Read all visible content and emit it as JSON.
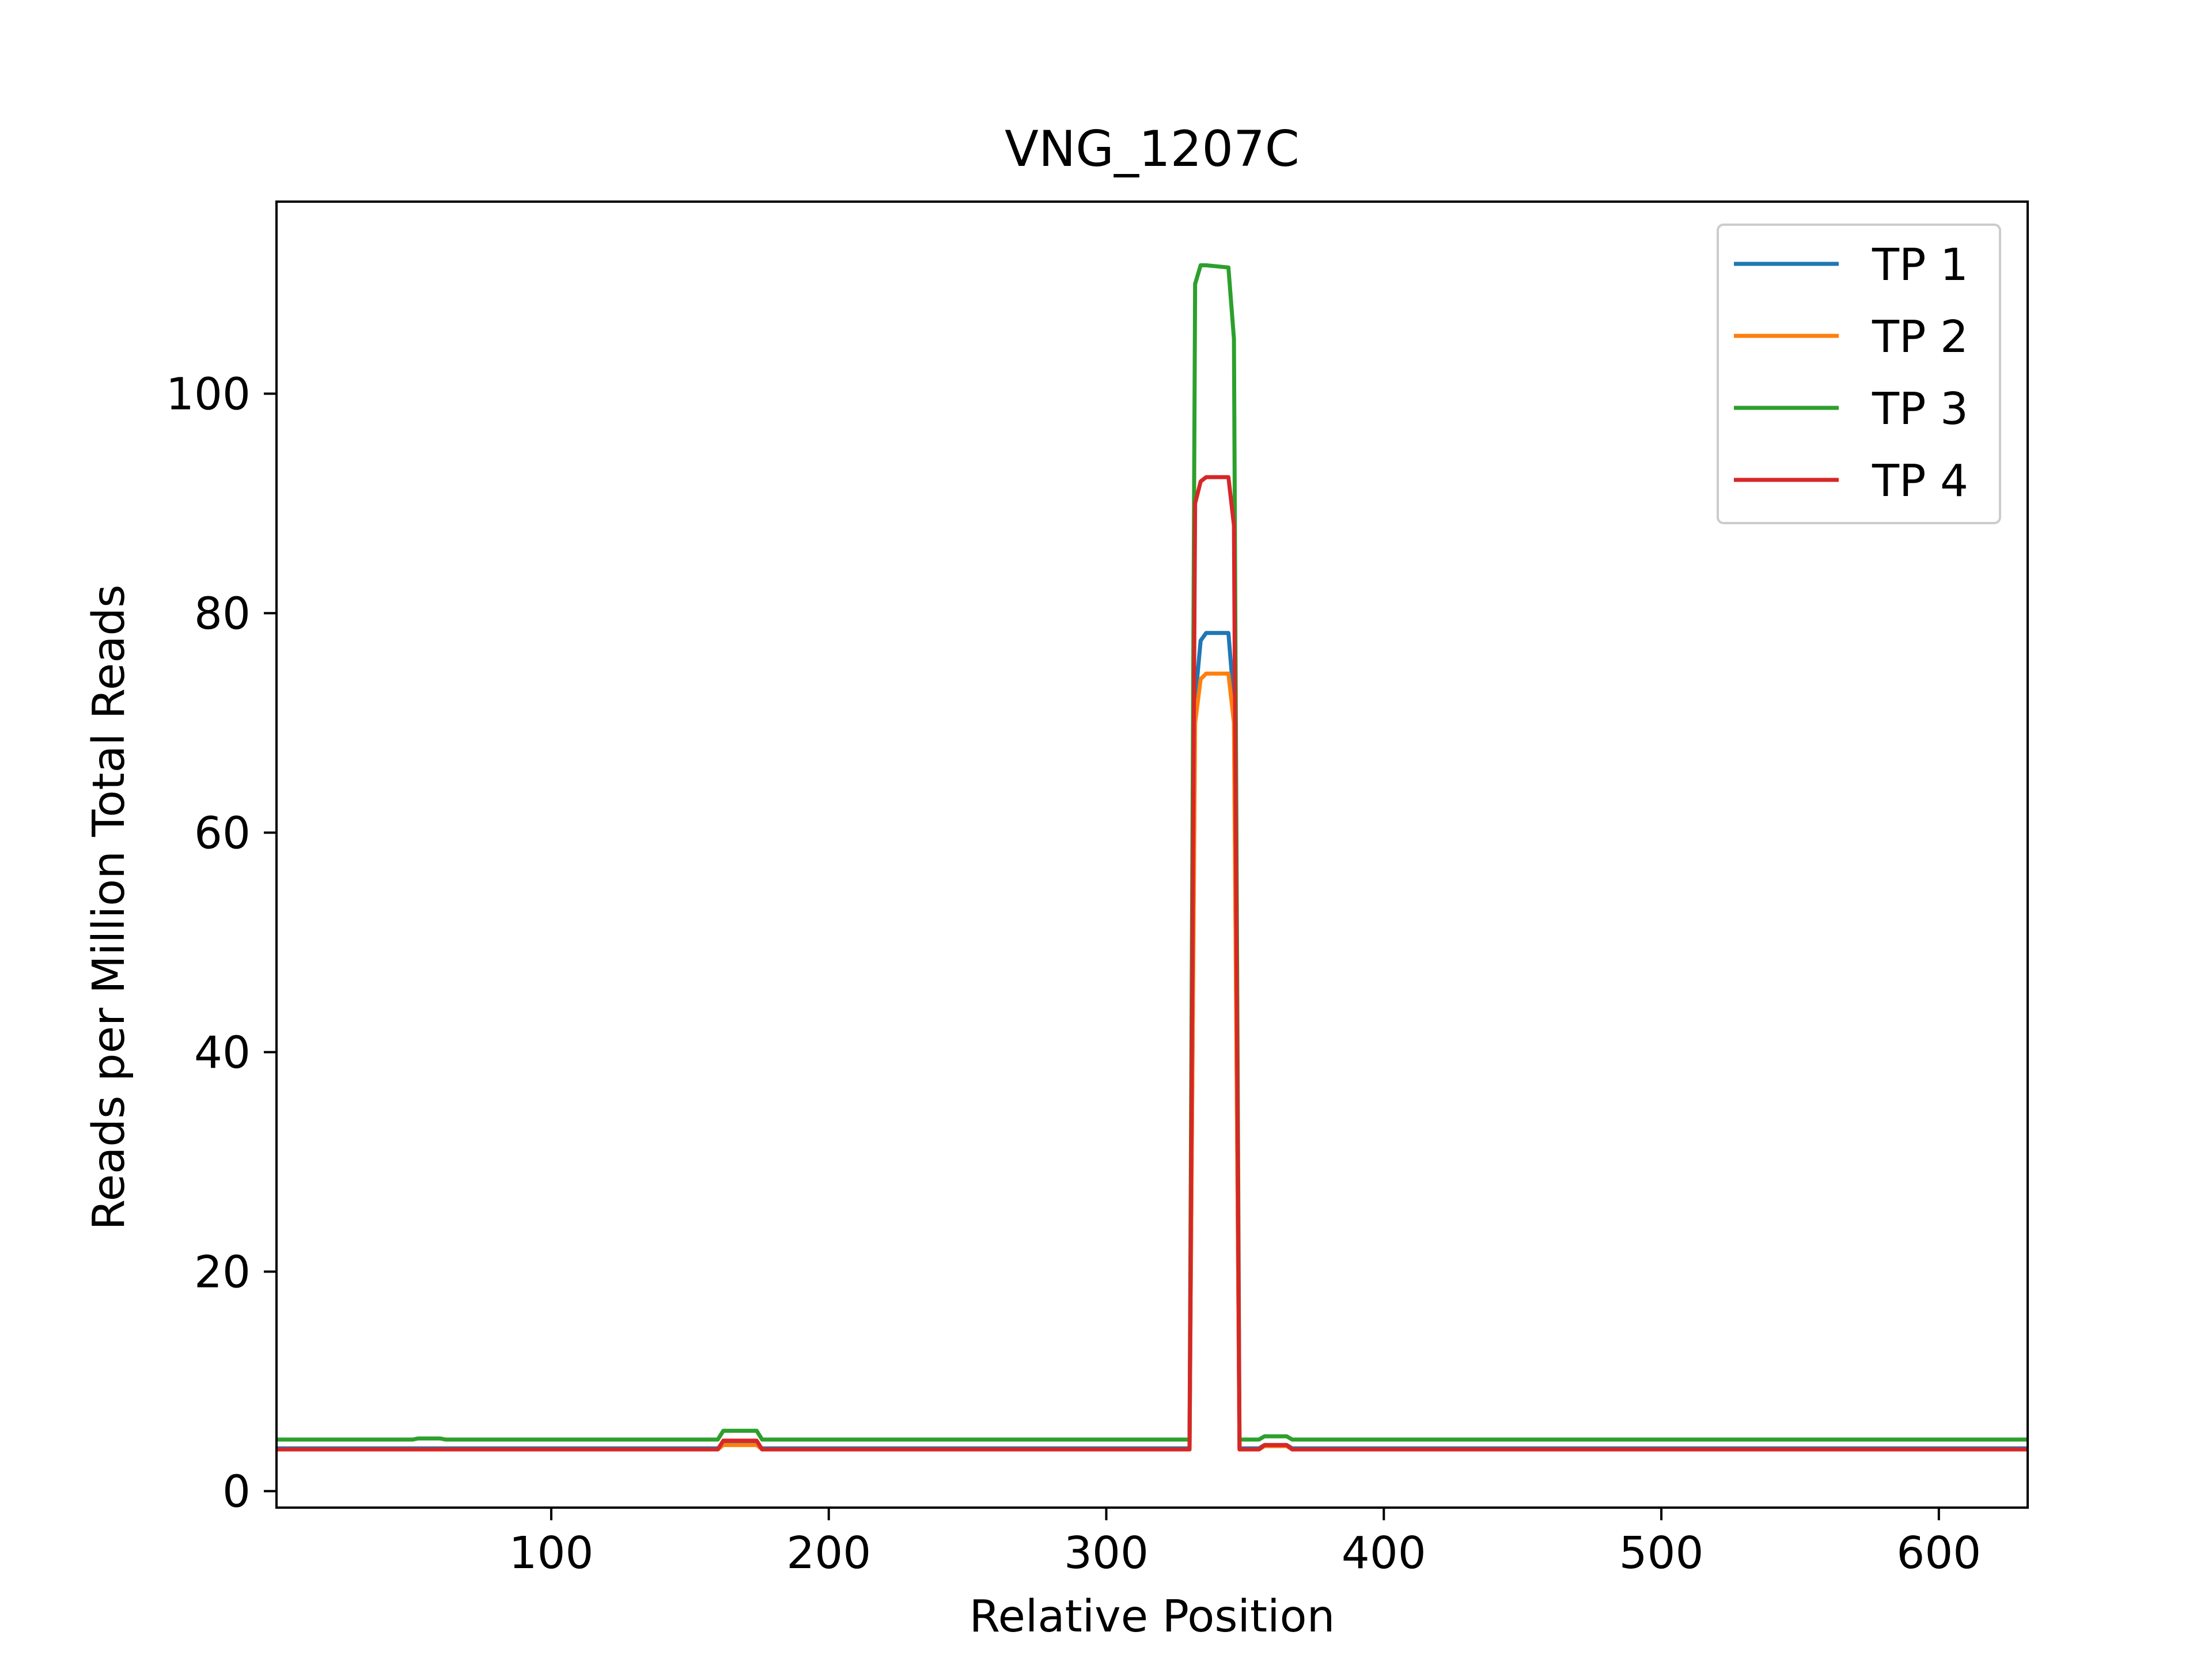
{
  "chart_data": {
    "type": "line",
    "title": "VNG_1207C",
    "xlabel": "Relative Position",
    "ylabel": "Reads per Million Total Reads",
    "xlim": [
      1,
      632
    ],
    "ylim": [
      -1.5,
      117.5
    ],
    "xticks": [
      100,
      200,
      300,
      400,
      500,
      600
    ],
    "yticks": [
      0,
      20,
      40,
      60,
      80,
      100
    ],
    "grid": false,
    "legend_position": "top-right",
    "series": [
      {
        "name": "TP 1",
        "color": "#1f77b4",
        "points": [
          [
            1,
            3.9
          ],
          [
            160,
            3.9
          ],
          [
            162,
            4.3
          ],
          [
            174,
            4.3
          ],
          [
            176,
            3.9
          ],
          [
            330,
            3.9
          ],
          [
            332,
            72
          ],
          [
            334,
            77.5
          ],
          [
            336,
            78.2
          ],
          [
            344,
            78.2
          ],
          [
            346,
            72
          ],
          [
            348,
            3.9
          ],
          [
            355,
            3.9
          ],
          [
            357,
            4.2
          ],
          [
            365,
            4.2
          ],
          [
            367,
            3.9
          ],
          [
            632,
            3.9
          ]
        ]
      },
      {
        "name": "TP 2",
        "color": "#ff7f0e",
        "points": [
          [
            1,
            3.8
          ],
          [
            160,
            3.8
          ],
          [
            162,
            4.2
          ],
          [
            174,
            4.2
          ],
          [
            176,
            3.8
          ],
          [
            330,
            3.8
          ],
          [
            332,
            70
          ],
          [
            334,
            74
          ],
          [
            336,
            74.5
          ],
          [
            344,
            74.5
          ],
          [
            346,
            70
          ],
          [
            348,
            3.8
          ],
          [
            355,
            3.8
          ],
          [
            357,
            4.1
          ],
          [
            365,
            4.1
          ],
          [
            367,
            3.8
          ],
          [
            632,
            3.8
          ]
        ]
      },
      {
        "name": "TP 3",
        "color": "#2ca02c",
        "points": [
          [
            1,
            4.7
          ],
          [
            50,
            4.7
          ],
          [
            52,
            4.8
          ],
          [
            60,
            4.8
          ],
          [
            62,
            4.7
          ],
          [
            160,
            4.7
          ],
          [
            162,
            5.5
          ],
          [
            174,
            5.5
          ],
          [
            176,
            4.7
          ],
          [
            330,
            4.7
          ],
          [
            332,
            110
          ],
          [
            334,
            111.7
          ],
          [
            336,
            111.7
          ],
          [
            344,
            111.5
          ],
          [
            346,
            105
          ],
          [
            348,
            4.7
          ],
          [
            355,
            4.7
          ],
          [
            357,
            5.0
          ],
          [
            365,
            5.0
          ],
          [
            367,
            4.7
          ],
          [
            632,
            4.7
          ]
        ]
      },
      {
        "name": "TP 4",
        "color": "#d62728",
        "points": [
          [
            1,
            3.8
          ],
          [
            160,
            3.8
          ],
          [
            162,
            4.6
          ],
          [
            174,
            4.6
          ],
          [
            176,
            3.8
          ],
          [
            330,
            3.8
          ],
          [
            332,
            90
          ],
          [
            334,
            92
          ],
          [
            336,
            92.4
          ],
          [
            344,
            92.4
          ],
          [
            346,
            88
          ],
          [
            348,
            3.8
          ],
          [
            355,
            3.8
          ],
          [
            357,
            4.2
          ],
          [
            365,
            4.2
          ],
          [
            367,
            3.8
          ],
          [
            632,
            3.8
          ]
        ]
      }
    ]
  }
}
